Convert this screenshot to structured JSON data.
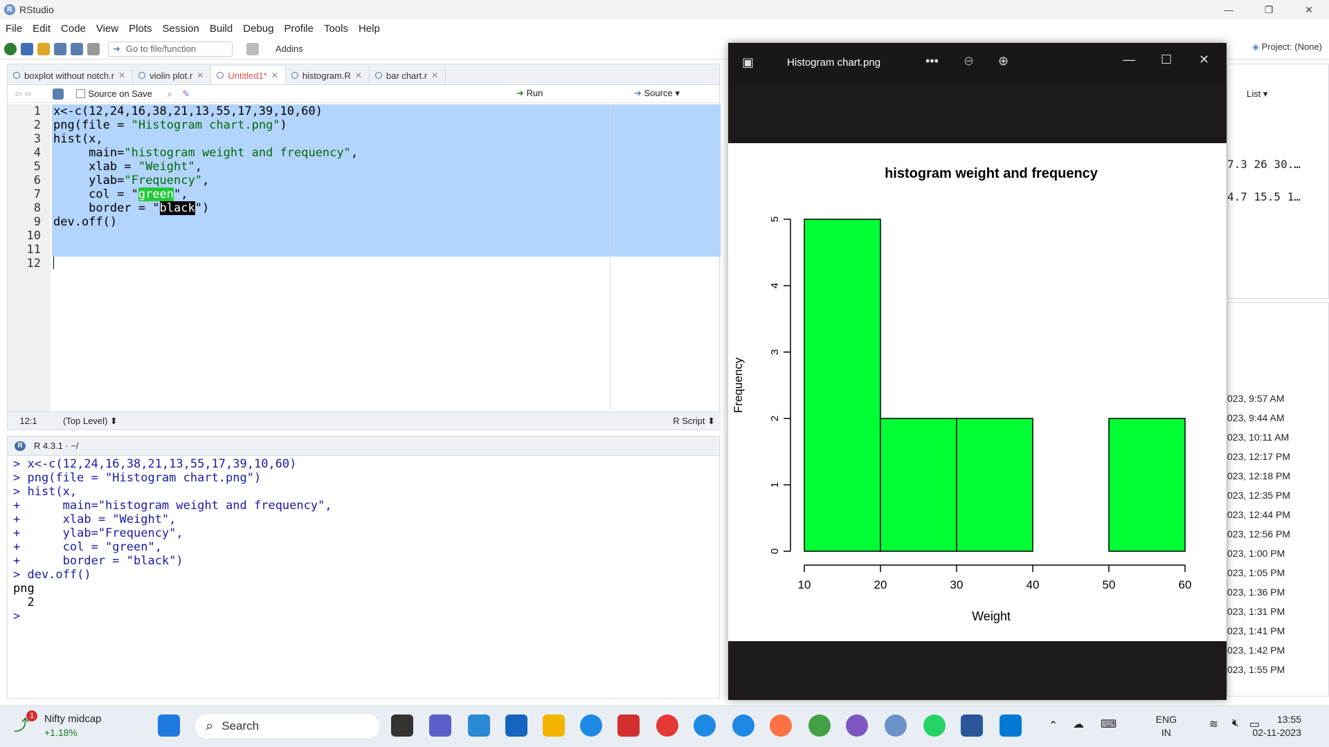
{
  "window": {
    "title": "RStudio",
    "controls": [
      "—",
      "❐",
      "✕"
    ]
  },
  "menu": [
    "File",
    "Edit",
    "Code",
    "View",
    "Plots",
    "Session",
    "Build",
    "Debug",
    "Profile",
    "Tools",
    "Help"
  ],
  "toolbar": {
    "goto_placeholder": "Go to file/function",
    "addins_label": "Addins",
    "project_label": "Project: (None)"
  },
  "editor": {
    "tabs": [
      {
        "label": "boxplot without notch.r"
      },
      {
        "label": "violin plot.r"
      },
      {
        "label": "Untitled1*",
        "active": true
      },
      {
        "label": "histogram.R"
      },
      {
        "label": "bar chart.r"
      }
    ],
    "source_on_save": "Source on Save",
    "run_label": "Run",
    "source_label": "Source",
    "line_numbers": [
      "1",
      "2",
      "3",
      "4",
      "5",
      "6",
      "7",
      "8",
      "9",
      "10",
      "11",
      "12"
    ],
    "lines": {
      "l1": "x<-c(12,24,16,38,21,13,55,17,39,10,60)",
      "l2_a": "png(file = ",
      "l2_b": "\"Histogram chart.png\"",
      "l2_c": ")",
      "l3": "hist(x,",
      "l4_a": "     main=",
      "l4_b": "\"histogram weight and frequency\"",
      "l4_c": ",",
      "l5_a": "     xlab = ",
      "l5_b": "\"Weight\"",
      "l5_c": ",",
      "l6_a": "     ylab=",
      "l6_b": "\"Frequency\"",
      "l6_c": ",",
      "l7_a": "     col = \"",
      "l7_b": "green",
      "l7_c": "\",",
      "l8_a": "     border = \"",
      "l8_b": "black",
      "l8_c": "\")",
      "l9": "dev.off()"
    },
    "status": {
      "position": "12:1",
      "scope": "(Top Level)",
      "type": "R Script"
    }
  },
  "console": {
    "header": "R 4.3.1 · ~/",
    "lines": [
      "> x<-c(12,24,16,38,21,13,55,17,39,10,60)",
      "> png(file = \"Histogram chart.png\")",
      "> hist(x,",
      "+      main=\"histogram weight and frequency\",",
      "+      xlab = \"Weight\",",
      "+      ylab=\"Frequency\",",
      "+      col = \"green\",",
      "+      border = \"black\")",
      "> dev.off()"
    ],
    "output": [
      "png",
      "  2"
    ],
    "prompt": "> "
  },
  "right_panes": {
    "env_label": "List",
    "env_values": [
      "7.3 26 30.…",
      "4.7 15.5 1…"
    ],
    "history_times": [
      "023, 9:57 AM",
      "023, 9:44 AM",
      "023, 10:11 AM",
      "023, 12:17 PM",
      "023, 12:18 PM",
      "023, 12:35 PM",
      "023, 12:44 PM",
      "023, 12:56 PM",
      "023, 1:00 PM",
      "023, 1:05 PM",
      "023, 1:36 PM",
      "023, 1:31 PM",
      "023, 1:41 PM",
      "023, 1:42 PM",
      "023, 1:55 PM"
    ]
  },
  "viewer": {
    "title": "Histogram chart.png",
    "more": "•••",
    "zoom_out": "⊖",
    "zoom_in": "⊕"
  },
  "chart_data": {
    "type": "bar",
    "title": "histogram weight and frequency",
    "xlabel": "Weight",
    "ylabel": "Frequency",
    "bins": [
      [
        10,
        20
      ],
      [
        20,
        30
      ],
      [
        30,
        40
      ],
      [
        40,
        50
      ],
      [
        50,
        60
      ]
    ],
    "values": [
      5,
      2,
      2,
      0,
      2
    ],
    "xlim": [
      10,
      60
    ],
    "ylim": [
      0,
      5
    ],
    "xticks": [
      10,
      20,
      30,
      40,
      50,
      60
    ],
    "yticks": [
      0,
      1,
      2,
      3,
      4,
      5
    ],
    "fill": "#00ff33",
    "border": "#000000"
  },
  "taskbar": {
    "widget_title": "Nifty midcap",
    "widget_change": "+1.18%",
    "widget_badge": "1",
    "search_label": "Search",
    "lang_top": "ENG",
    "lang_bottom": "IN",
    "time": "13:55",
    "date": "02-11-2023"
  }
}
